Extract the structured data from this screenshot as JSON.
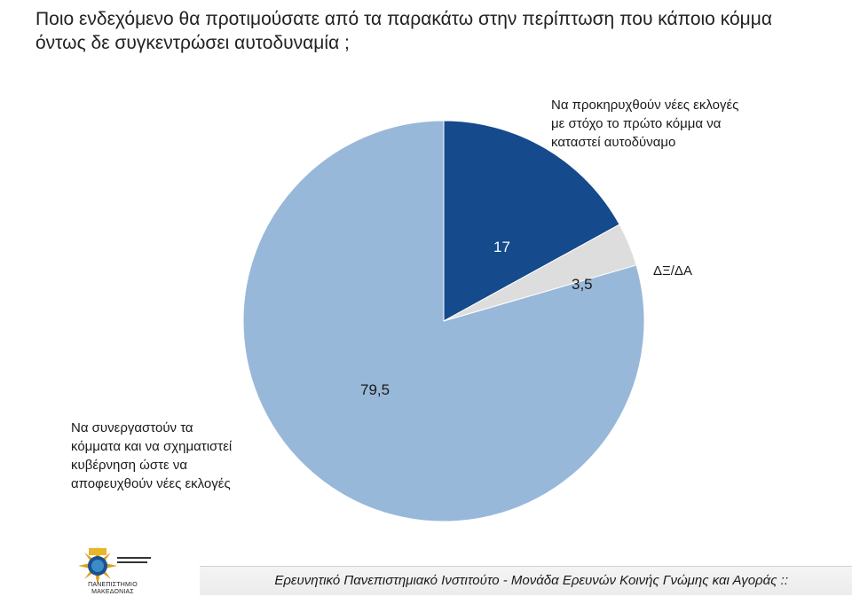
{
  "title": "Ποιο ενδεχόμενο θα προτιμούσατε από τα παρακάτω στην περίπτωση που κάποιο κόμμα όντως δε συγκεντρώσει αυτοδυναμία ;",
  "chart_data": {
    "type": "pie",
    "title": "Ποιο ενδεχόμενο θα προτιμούσατε από τα παρακάτω στην περίπτωση που κάποιο κόμμα όντως δε συγκεντρώσει αυτοδυναμία ;",
    "categories": [
      "Να προκηρυχθούν νέες εκλογές με στόχο το πρώτο κόμμα να καταστεί αυτοδύναμο",
      "ΔΞ/ΔΑ",
      "Να συνεργαστούν τα κόμματα και να σχηματιστεί κυβέρνηση ώστε να αποφευχθούν νέες εκλογές"
    ],
    "values": [
      17,
      3.5,
      79.5
    ],
    "value_labels": [
      "17",
      "3,5",
      "79,5"
    ],
    "colors": [
      "#154a8c",
      "#dddddd",
      "#98b8da"
    ],
    "start_angle_deg": 0,
    "direction": "clockwise"
  },
  "labels": {
    "slice1_lines": [
      "Να προκηρυχθούν νέες εκλογές",
      "με στόχο το πρώτο κόμμα να",
      "καταστεί αυτοδύναμο"
    ],
    "slice2": "ΔΞ/ΔΑ",
    "slice3_lines": [
      "Να συνεργαστούν τα",
      "κόμματα και να σχηματιστεί",
      "κυβέρνηση ώστε να",
      "αποφευχθούν νέες εκλογές"
    ]
  },
  "footer": {
    "text": "Ερευνητικό Πανεπιστημιακό Ινστιτούτο - Μονάδα Ερευνών Κοινής Γνώμης και Αγοράς ::",
    "logo_text": "ΠΑΝΕΠΙΣΤΗΜΙΟ ΜΑΚΕΔΟΝΙΑΣ"
  }
}
